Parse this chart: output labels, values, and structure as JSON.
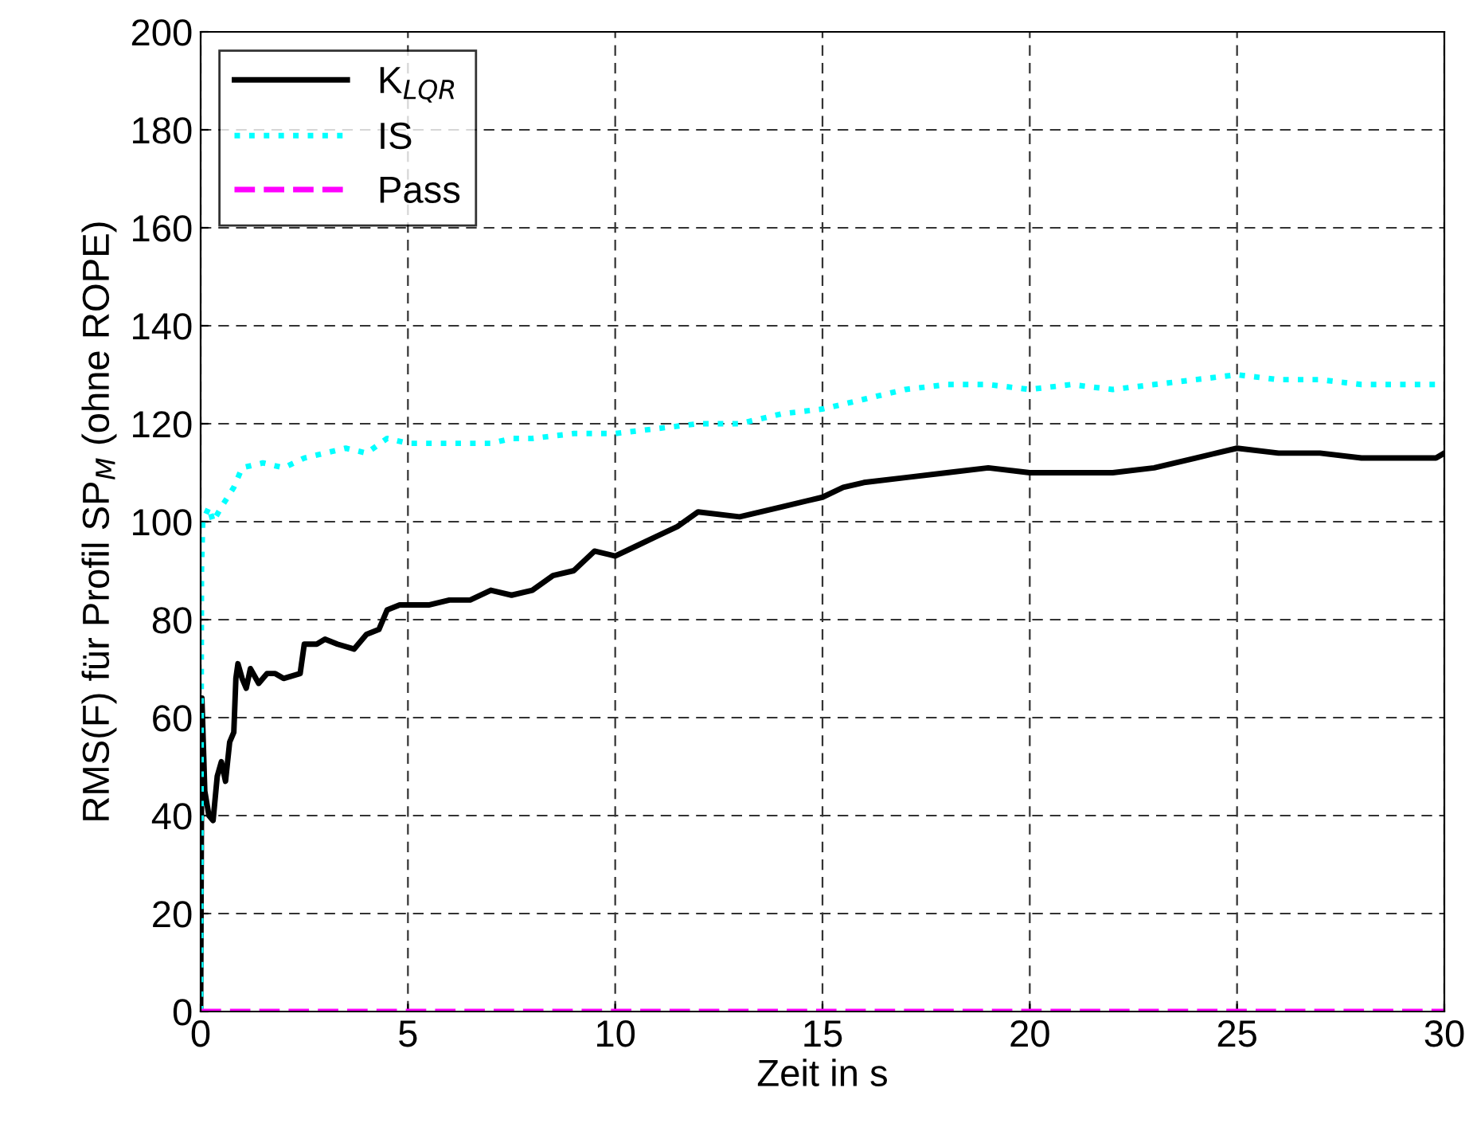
{
  "chart_data": {
    "type": "line",
    "xlabel": "Zeit in s",
    "ylabel": "RMS(F) für Profil SP$_{M}$ (ohne ROPE)",
    "xlim": [
      0,
      30
    ],
    "ylim": [
      0,
      200
    ],
    "xticks": [
      0,
      5,
      10,
      15,
      20,
      25,
      30
    ],
    "yticks": [
      0,
      20,
      40,
      60,
      80,
      100,
      120,
      140,
      160,
      180,
      200
    ],
    "grid": true,
    "legend": "top left",
    "series": [
      {
        "name": "K$_{LQR}$",
        "color": "#000000",
        "line_style": "solid",
        "x": [
          0,
          0.03,
          0.1,
          0.2,
          0.3,
          0.4,
          0.5,
          0.6,
          0.7,
          0.8,
          0.85,
          0.9,
          1.0,
          1.1,
          1.2,
          1.4,
          1.6,
          1.8,
          2.0,
          2.4,
          2.5,
          2.8,
          3.0,
          3.3,
          3.7,
          4.0,
          4.3,
          4.5,
          4.8,
          5.5,
          6.0,
          6.5,
          7.0,
          7.5,
          8.0,
          8.5,
          9.0,
          9.5,
          10,
          10.5,
          11,
          11.5,
          12,
          13,
          14,
          15,
          15.5,
          16,
          17,
          18,
          19,
          20,
          21,
          22,
          23,
          24,
          24.5,
          25,
          26,
          27,
          28,
          29,
          29.8,
          30
        ],
        "values": [
          0,
          64,
          45,
          40,
          39,
          48,
          51,
          47,
          55,
          57,
          68,
          71,
          68,
          66,
          70,
          67,
          69,
          69,
          68,
          69,
          75,
          75,
          76,
          75,
          74,
          77,
          78,
          82,
          83,
          83,
          84,
          84,
          86,
          85,
          86,
          89,
          90,
          94,
          93,
          95,
          97,
          99,
          102,
          101,
          103,
          105,
          107,
          108,
          109,
          110,
          111,
          110,
          110,
          110,
          111,
          113,
          114,
          115,
          114,
          114,
          113,
          113,
          113,
          114
        ]
      },
      {
        "name": "IS",
        "color": "#00ffff",
        "line_style": "dotted",
        "x": [
          0,
          0.02,
          0.05,
          0.2,
          0.3,
          0.5,
          0.8,
          1.0,
          1.5,
          2.0,
          2.5,
          3.0,
          3.5,
          4.0,
          4.5,
          5.0,
          6.0,
          7.0,
          7.5,
          8,
          9,
          10,
          11,
          12,
          13,
          14,
          15,
          16,
          17,
          18,
          19,
          20,
          21,
          22,
          23,
          24,
          25,
          26,
          27,
          28,
          29,
          30
        ],
        "values": [
          0,
          90,
          100,
          103,
          100,
          103,
          107,
          111,
          112,
          111,
          113,
          114,
          115,
          114,
          117,
          116,
          116,
          116,
          117,
          117,
          118,
          118,
          119,
          120,
          120,
          122,
          123,
          125,
          127,
          128,
          128,
          127,
          128,
          127,
          128,
          129,
          130,
          129,
          129,
          128,
          128,
          128
        ]
      },
      {
        "name": "Pass",
        "color": "#ff00ff",
        "line_style": "dashed",
        "x": [
          0,
          30
        ],
        "values": [
          0,
          0
        ]
      }
    ]
  }
}
